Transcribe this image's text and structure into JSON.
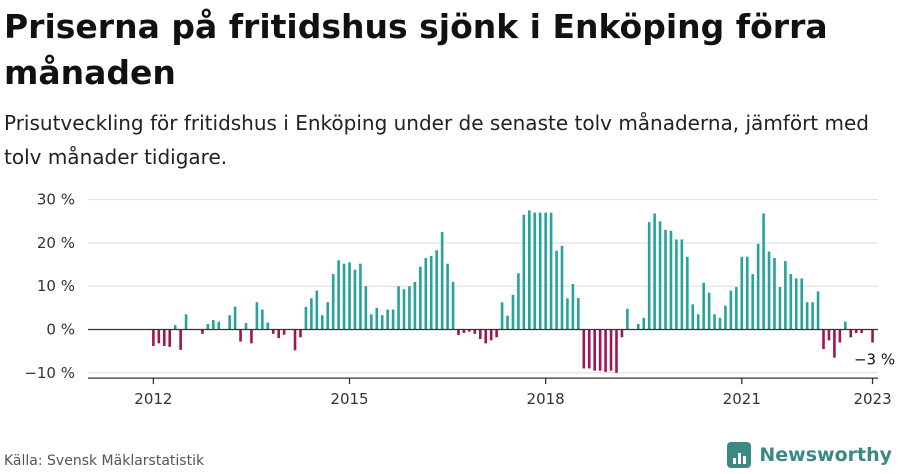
{
  "header": {
    "title": "Priserna på fritidshus sjönk i Enköping förra månaden",
    "subtitle": "Prisutveckling för fritidshus i Enköping under de senaste tolv månaderna, jämfört med tolv månader tidigare."
  },
  "footer": {
    "source": "Källa: Svensk Mäklarstatistik",
    "brand": "Newsworthy"
  },
  "colors": {
    "positive": "#26a39a",
    "negative": "#a3134f",
    "grid": "#dddddd",
    "axis": "#333333",
    "brand": "#3a8a84"
  },
  "chart_data": {
    "type": "bar",
    "x_start": "2011-01",
    "x_end": "2023-02",
    "x_ticks": [
      {
        "label": "2012",
        "x": "2012-01"
      },
      {
        "label": "2015",
        "x": "2015-01"
      },
      {
        "label": "2018",
        "x": "2018-01"
      },
      {
        "label": "2021",
        "x": "2021-01"
      },
      {
        "label": "2023",
        "x": "2023-01"
      }
    ],
    "y_ticks": [
      {
        "label": "30 %",
        "value": 30
      },
      {
        "label": "20 %",
        "value": 20
      },
      {
        "label": "10 %",
        "value": 10
      },
      {
        "label": "0 %",
        "value": 0
      },
      {
        "label": "−10 %",
        "value": -10
      }
    ],
    "ylim": [
      -11,
      31
    ],
    "grid": true,
    "annotation": {
      "text": "−3 %",
      "x": "2023-01",
      "value": -3
    },
    "series": [
      {
        "values": [
          {
            "x": "2012-01",
            "y": -3.8
          },
          {
            "x": "2012-02",
            "y": -3.2
          },
          {
            "x": "2012-03",
            "y": -3.8
          },
          {
            "x": "2012-04",
            "y": -4.0
          },
          {
            "x": "2012-05",
            "y": 1.0
          },
          {
            "x": "2012-06",
            "y": -4.7
          },
          {
            "x": "2012-07",
            "y": 3.5
          },
          {
            "x": "2012-08",
            "y": 0.0
          },
          {
            "x": "2012-09",
            "y": 0.0
          },
          {
            "x": "2012-10",
            "y": -1.0
          },
          {
            "x": "2012-11",
            "y": 1.3
          },
          {
            "x": "2012-12",
            "y": 2.2
          },
          {
            "x": "2013-01",
            "y": 1.8
          },
          {
            "x": "2013-02",
            "y": 0.0
          },
          {
            "x": "2013-03",
            "y": 3.3
          },
          {
            "x": "2013-04",
            "y": 5.3
          },
          {
            "x": "2013-05",
            "y": -2.8
          },
          {
            "x": "2013-06",
            "y": 1.5
          },
          {
            "x": "2013-07",
            "y": -3.2
          },
          {
            "x": "2013-08",
            "y": 6.3
          },
          {
            "x": "2013-09",
            "y": 4.6
          },
          {
            "x": "2013-10",
            "y": 1.6
          },
          {
            "x": "2013-11",
            "y": -1.0
          },
          {
            "x": "2013-12",
            "y": -2.0
          },
          {
            "x": "2014-01",
            "y": -1.2
          },
          {
            "x": "2014-02",
            "y": 0.0
          },
          {
            "x": "2014-03",
            "y": -4.8
          },
          {
            "x": "2014-04",
            "y": -1.8
          },
          {
            "x": "2014-05",
            "y": 5.2
          },
          {
            "x": "2014-06",
            "y": 7.2
          },
          {
            "x": "2014-07",
            "y": 9.0
          },
          {
            "x": "2014-08",
            "y": 3.3
          },
          {
            "x": "2014-09",
            "y": 6.3
          },
          {
            "x": "2014-10",
            "y": 12.8
          },
          {
            "x": "2014-11",
            "y": 16.0
          },
          {
            "x": "2014-12",
            "y": 15.2
          },
          {
            "x": "2015-01",
            "y": 15.5
          },
          {
            "x": "2015-02",
            "y": 13.8
          },
          {
            "x": "2015-03",
            "y": 15.2
          },
          {
            "x": "2015-04",
            "y": 10.0
          },
          {
            "x": "2015-05",
            "y": 3.5
          },
          {
            "x": "2015-06",
            "y": 5.0
          },
          {
            "x": "2015-07",
            "y": 3.3
          },
          {
            "x": "2015-08",
            "y": 4.6
          },
          {
            "x": "2015-09",
            "y": 4.6
          },
          {
            "x": "2015-10",
            "y": 10.0
          },
          {
            "x": "2015-11",
            "y": 9.3
          },
          {
            "x": "2015-12",
            "y": 10.0
          },
          {
            "x": "2016-01",
            "y": 11.0
          },
          {
            "x": "2016-02",
            "y": 14.5
          },
          {
            "x": "2016-03",
            "y": 16.5
          },
          {
            "x": "2016-04",
            "y": 17.0
          },
          {
            "x": "2016-05",
            "y": 18.3
          },
          {
            "x": "2016-06",
            "y": 22.5
          },
          {
            "x": "2016-07",
            "y": 15.2
          },
          {
            "x": "2016-08",
            "y": 11.0
          },
          {
            "x": "2016-09",
            "y": -1.3
          },
          {
            "x": "2016-10",
            "y": -0.8
          },
          {
            "x": "2016-11",
            "y": -0.5
          },
          {
            "x": "2016-12",
            "y": -1.0
          },
          {
            "x": "2017-01",
            "y": -2.2
          },
          {
            "x": "2017-02",
            "y": -3.2
          },
          {
            "x": "2017-03",
            "y": -2.5
          },
          {
            "x": "2017-04",
            "y": -1.8
          },
          {
            "x": "2017-05",
            "y": 6.3
          },
          {
            "x": "2017-06",
            "y": 3.2
          },
          {
            "x": "2017-07",
            "y": 8.0
          },
          {
            "x": "2017-08",
            "y": 13.0
          },
          {
            "x": "2017-09",
            "y": 26.5
          },
          {
            "x": "2017-10",
            "y": 27.5
          },
          {
            "x": "2017-11",
            "y": 27.0
          },
          {
            "x": "2017-12",
            "y": 27.0
          },
          {
            "x": "2018-01",
            "y": 27.0
          },
          {
            "x": "2018-02",
            "y": 27.0
          },
          {
            "x": "2018-03",
            "y": 18.2
          },
          {
            "x": "2018-04",
            "y": 19.3
          },
          {
            "x": "2018-05",
            "y": 7.2
          },
          {
            "x": "2018-06",
            "y": 10.5
          },
          {
            "x": "2018-07",
            "y": 7.3
          },
          {
            "x": "2018-08",
            "y": -9.0
          },
          {
            "x": "2018-09",
            "y": -9.0
          },
          {
            "x": "2018-10",
            "y": -9.5
          },
          {
            "x": "2018-11",
            "y": -9.5
          },
          {
            "x": "2018-12",
            "y": -9.8
          },
          {
            "x": "2019-01",
            "y": -9.5
          },
          {
            "x": "2019-02",
            "y": -10.0
          },
          {
            "x": "2019-03",
            "y": -1.8
          },
          {
            "x": "2019-04",
            "y": 4.8
          },
          {
            "x": "2019-05",
            "y": 0.0
          },
          {
            "x": "2019-06",
            "y": 1.3
          },
          {
            "x": "2019-07",
            "y": 2.7
          },
          {
            "x": "2019-08",
            "y": 24.8
          },
          {
            "x": "2019-09",
            "y": 26.8
          },
          {
            "x": "2019-10",
            "y": 25.0
          },
          {
            "x": "2019-11",
            "y": 23.0
          },
          {
            "x": "2019-12",
            "y": 22.8
          },
          {
            "x": "2020-01",
            "y": 20.8
          },
          {
            "x": "2020-02",
            "y": 20.8
          },
          {
            "x": "2020-03",
            "y": 16.8
          },
          {
            "x": "2020-04",
            "y": 5.8
          },
          {
            "x": "2020-05",
            "y": 3.5
          },
          {
            "x": "2020-06",
            "y": 10.8
          },
          {
            "x": "2020-07",
            "y": 8.5
          },
          {
            "x": "2020-08",
            "y": 3.5
          },
          {
            "x": "2020-09",
            "y": 2.7
          },
          {
            "x": "2020-10",
            "y": 5.5
          },
          {
            "x": "2020-11",
            "y": 9.0
          },
          {
            "x": "2020-12",
            "y": 9.8
          },
          {
            "x": "2021-01",
            "y": 16.8
          },
          {
            "x": "2021-02",
            "y": 16.8
          },
          {
            "x": "2021-03",
            "y": 12.8
          },
          {
            "x": "2021-04",
            "y": 19.8
          },
          {
            "x": "2021-05",
            "y": 26.8
          },
          {
            "x": "2021-06",
            "y": 18.0
          },
          {
            "x": "2021-07",
            "y": 16.5
          },
          {
            "x": "2021-08",
            "y": 9.8
          },
          {
            "x": "2021-09",
            "y": 15.8
          },
          {
            "x": "2021-10",
            "y": 12.8
          },
          {
            "x": "2021-11",
            "y": 11.8
          },
          {
            "x": "2021-12",
            "y": 11.8
          },
          {
            "x": "2022-01",
            "y": 6.3
          },
          {
            "x": "2022-02",
            "y": 6.3
          },
          {
            "x": "2022-03",
            "y": 8.8
          },
          {
            "x": "2022-04",
            "y": -4.5
          },
          {
            "x": "2022-05",
            "y": -2.5
          },
          {
            "x": "2022-06",
            "y": -6.5
          },
          {
            "x": "2022-07",
            "y": -3.0
          },
          {
            "x": "2022-08",
            "y": 1.8
          },
          {
            "x": "2022-09",
            "y": -1.8
          },
          {
            "x": "2022-10",
            "y": -0.8
          },
          {
            "x": "2022-11",
            "y": -0.8
          },
          {
            "x": "2022-12",
            "y": 0.0
          },
          {
            "x": "2023-01",
            "y": -3.0
          }
        ]
      }
    ]
  }
}
